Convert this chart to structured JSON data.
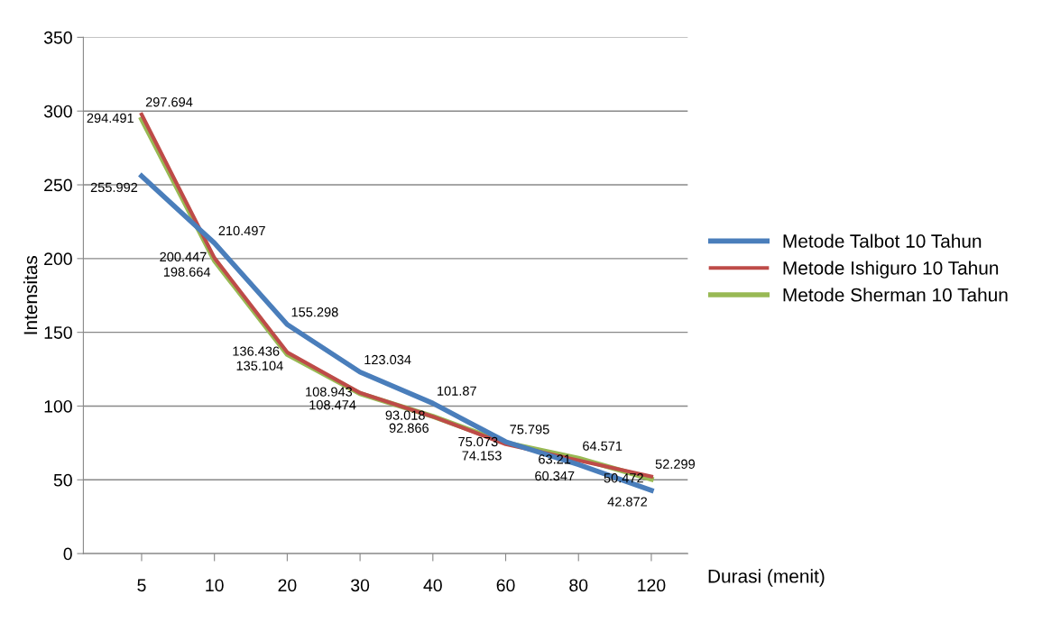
{
  "chart_data": {
    "type": "line",
    "xlabel": "Durasi (menit)",
    "ylabel": "Intensitas",
    "categories": [
      "5",
      "10",
      "20",
      "30",
      "40",
      "60",
      "80",
      "120"
    ],
    "series": [
      {
        "name": "Metode Talbot 10 Tahun",
        "color": "#4a7ebb",
        "values": [
          255.992,
          210.497,
          155.298,
          123.034,
          101.87,
          75.795,
          60.347,
          42.872
        ]
      },
      {
        "name": "Metode Ishiguro 10 Tahun",
        "color": "#be4b48",
        "values": [
          297.694,
          200.447,
          136.436,
          108.943,
          92.866,
          74.153,
          63.21,
          52.299
        ]
      },
      {
        "name": "Metode Sherman 10 Tahun",
        "color": "#98b954",
        "values": [
          294.491,
          198.664,
          135.104,
          108.474,
          93.018,
          75.073,
          64.571,
          50.472
        ]
      }
    ],
    "ylim": [
      0,
      350
    ],
    "yticks": [
      0,
      50,
      100,
      150,
      200,
      250,
      300,
      350
    ],
    "grid": "y",
    "legend": "right",
    "data_labels": true,
    "marker": "none",
    "line_style": "solid"
  }
}
